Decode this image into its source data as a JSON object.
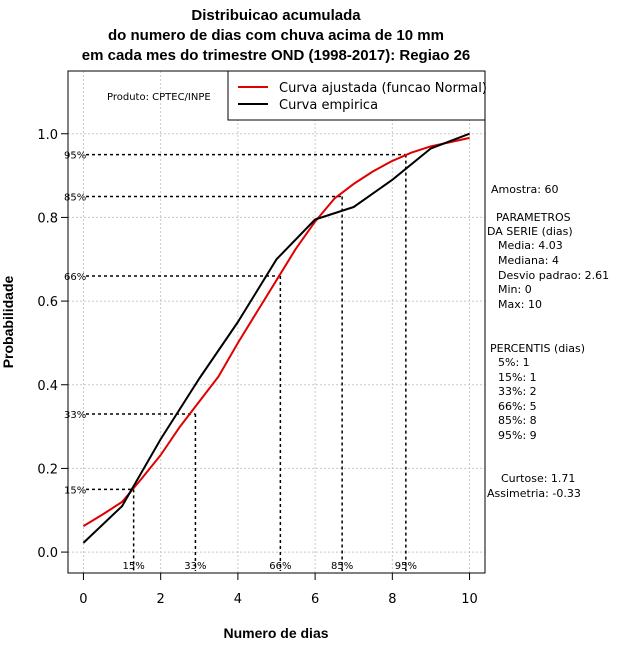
{
  "chart_data": {
    "type": "line",
    "title": [
      "Distribuicao acumulada",
      "do numero de dias com chuva acima de 10 mm",
      "em cada mes do trimestre OND (1998-2017): Regiao 26"
    ],
    "xlabel": "Numero de dias",
    "ylabel": "Probabilidade",
    "xlim": [
      -0.4,
      10.4
    ],
    "ylim": [
      -0.05,
      1.15
    ],
    "xticks": [
      "0",
      "2",
      "4",
      "6",
      "8",
      "10"
    ],
    "xtick_values": [
      0,
      2,
      4,
      6,
      8,
      10
    ],
    "yticks": [
      "0.0",
      "0.2",
      "0.4",
      "0.6",
      "0.8",
      "1.0"
    ],
    "ytick_values": [
      0,
      0.2,
      0.4,
      0.6,
      0.8,
      1.0
    ],
    "grid": true,
    "series": [
      {
        "name": "Curva ajustada (funcao Normal)",
        "color": "#e00000",
        "x": [
          0,
          0.5,
          1,
          1.5,
          2,
          2.5,
          3,
          3.5,
          4,
          4.5,
          5,
          5.5,
          6,
          6.5,
          7,
          7.5,
          8,
          8.5,
          9,
          9.5,
          10
        ],
        "y": [
          0.062,
          0.09,
          0.12,
          0.175,
          0.232,
          0.3,
          0.36,
          0.42,
          0.5,
          0.575,
          0.65,
          0.725,
          0.79,
          0.845,
          0.88,
          0.91,
          0.935,
          0.955,
          0.97,
          0.98,
          0.99
        ]
      },
      {
        "name": "Curva empirica",
        "color": "#000000",
        "x": [
          0,
          1,
          2,
          3,
          4,
          5,
          6,
          7,
          8,
          9,
          10
        ],
        "y": [
          0.022,
          0.11,
          0.27,
          0.415,
          0.55,
          0.7,
          0.795,
          0.825,
          0.89,
          0.965,
          1.0
        ]
      }
    ],
    "percentile_guides": [
      {
        "label": "15%",
        "p": 0.15,
        "x": 1.3
      },
      {
        "label": "33%",
        "p": 0.33,
        "x": 2.9
      },
      {
        "label": "66%",
        "p": 0.66,
        "x": 5.1
      },
      {
        "label": "85%",
        "p": 0.85,
        "x": 6.7
      },
      {
        "label": "95%",
        "p": 0.95,
        "x": 8.35
      }
    ],
    "legend_position": "top-right"
  },
  "produto": "Produto: CPTEC/INPE",
  "side_panel": {
    "amostra": "Amostra: 60",
    "parametros_title": "PARAMETROS",
    "parametros_subtitle": "DA SERIE (dias)",
    "media": "Media: 4.03",
    "mediana": "Mediana: 4",
    "desvio": "Desvio padrao: 2.61",
    "min": "Min: 0",
    "max": "Max: 10",
    "percentis_title": "PERCENTIS (dias)",
    "p5": "5%: 1",
    "p15": "15%: 1",
    "p33": "33%: 2",
    "p66": "66%: 5",
    "p85": "85%: 8",
    "p95": "95%: 9",
    "curtose": "Curtose: 1.71",
    "assimetria": "Assimetria: -0.33"
  }
}
